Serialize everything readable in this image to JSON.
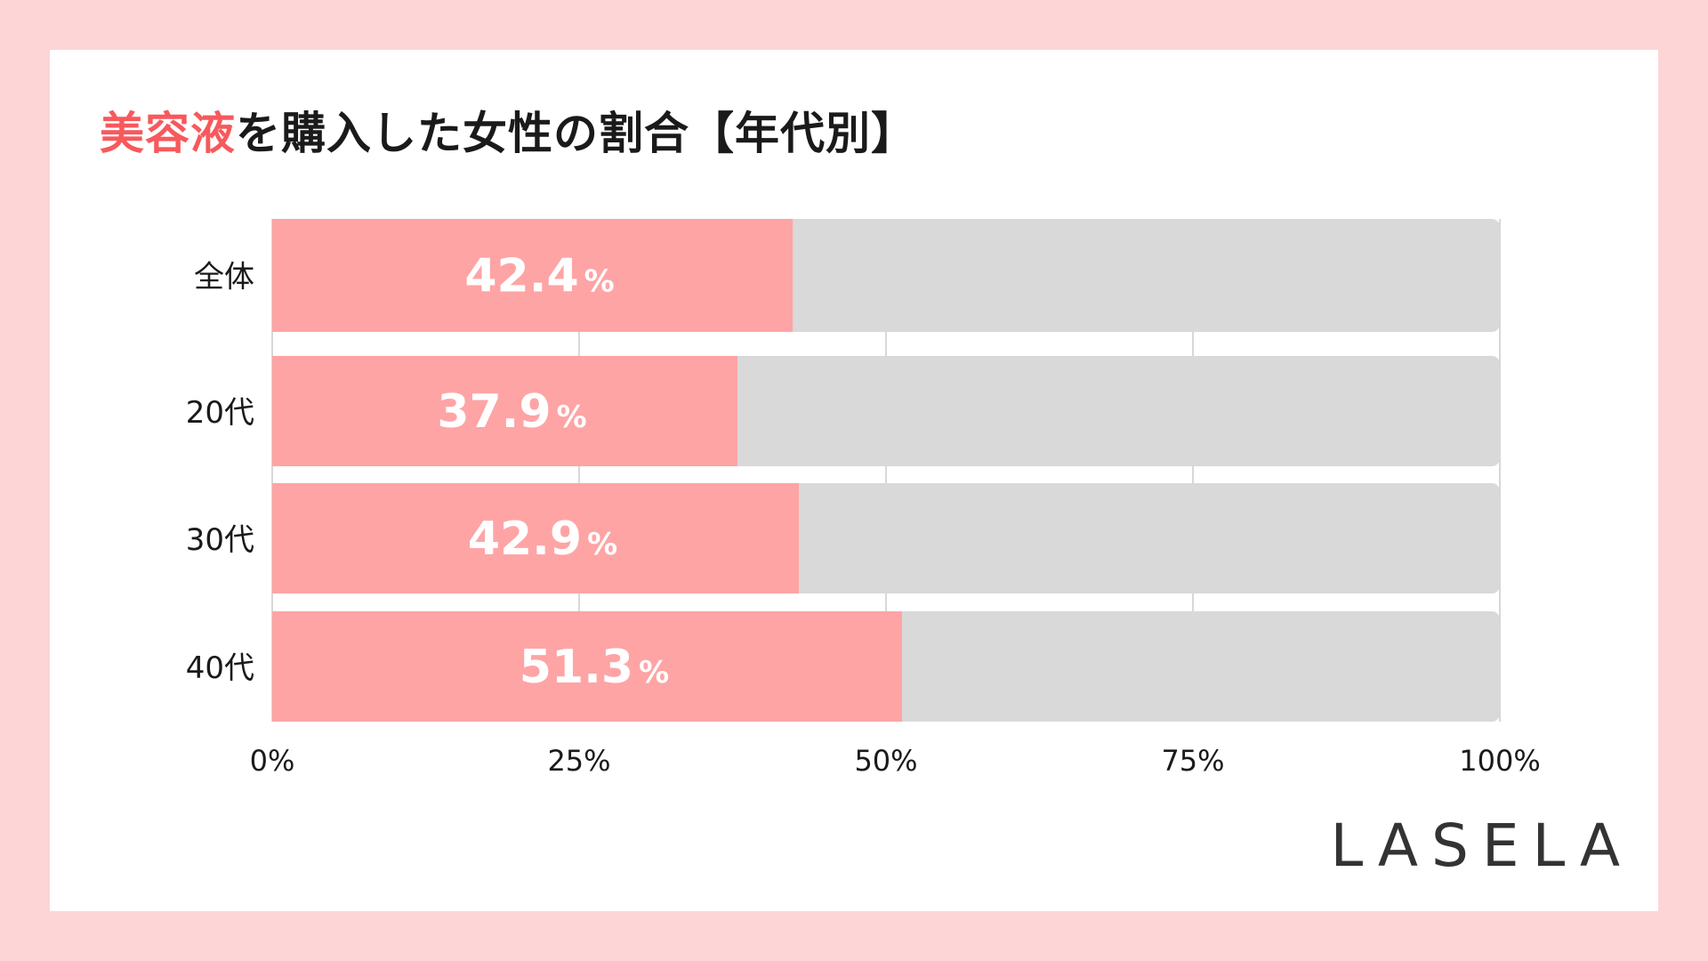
{
  "title": {
    "accent": "美容液",
    "rest": "を購入した女性の割合【年代別】"
  },
  "brand": "LASELA",
  "colors": {
    "page_bg": "#fdd5d7",
    "panel_bg": "#ffffff",
    "bar_fill": "#fea4a5",
    "bar_track": "#d9d9d9",
    "title_accent": "#f7595c",
    "text": "#1a1a1a",
    "value_label": "#ffffff",
    "grid": "#cccccc"
  },
  "chart_data": {
    "type": "bar",
    "orientation": "horizontal",
    "stacked_to_100": true,
    "categories": [
      "全体",
      "20代",
      "30代",
      "40代"
    ],
    "series": [
      {
        "values": [
          42.4,
          37.9,
          42.9,
          51.3
        ]
      },
      {
        "values": [
          57.6,
          62.1,
          57.1,
          48.7
        ]
      }
    ],
    "value_labels": [
      {
        "number": "42.4",
        "unit": "%"
      },
      {
        "number": "37.9",
        "unit": "%"
      },
      {
        "number": "42.9",
        "unit": "%"
      },
      {
        "number": "51.3",
        "unit": "%"
      }
    ],
    "xlim": [
      0,
      100
    ],
    "x_ticks": [
      0,
      25,
      50,
      75,
      100
    ],
    "x_tick_labels": [
      "0%",
      "25%",
      "50%",
      "75%",
      "100%"
    ],
    "grid": true,
    "legend": "none"
  }
}
